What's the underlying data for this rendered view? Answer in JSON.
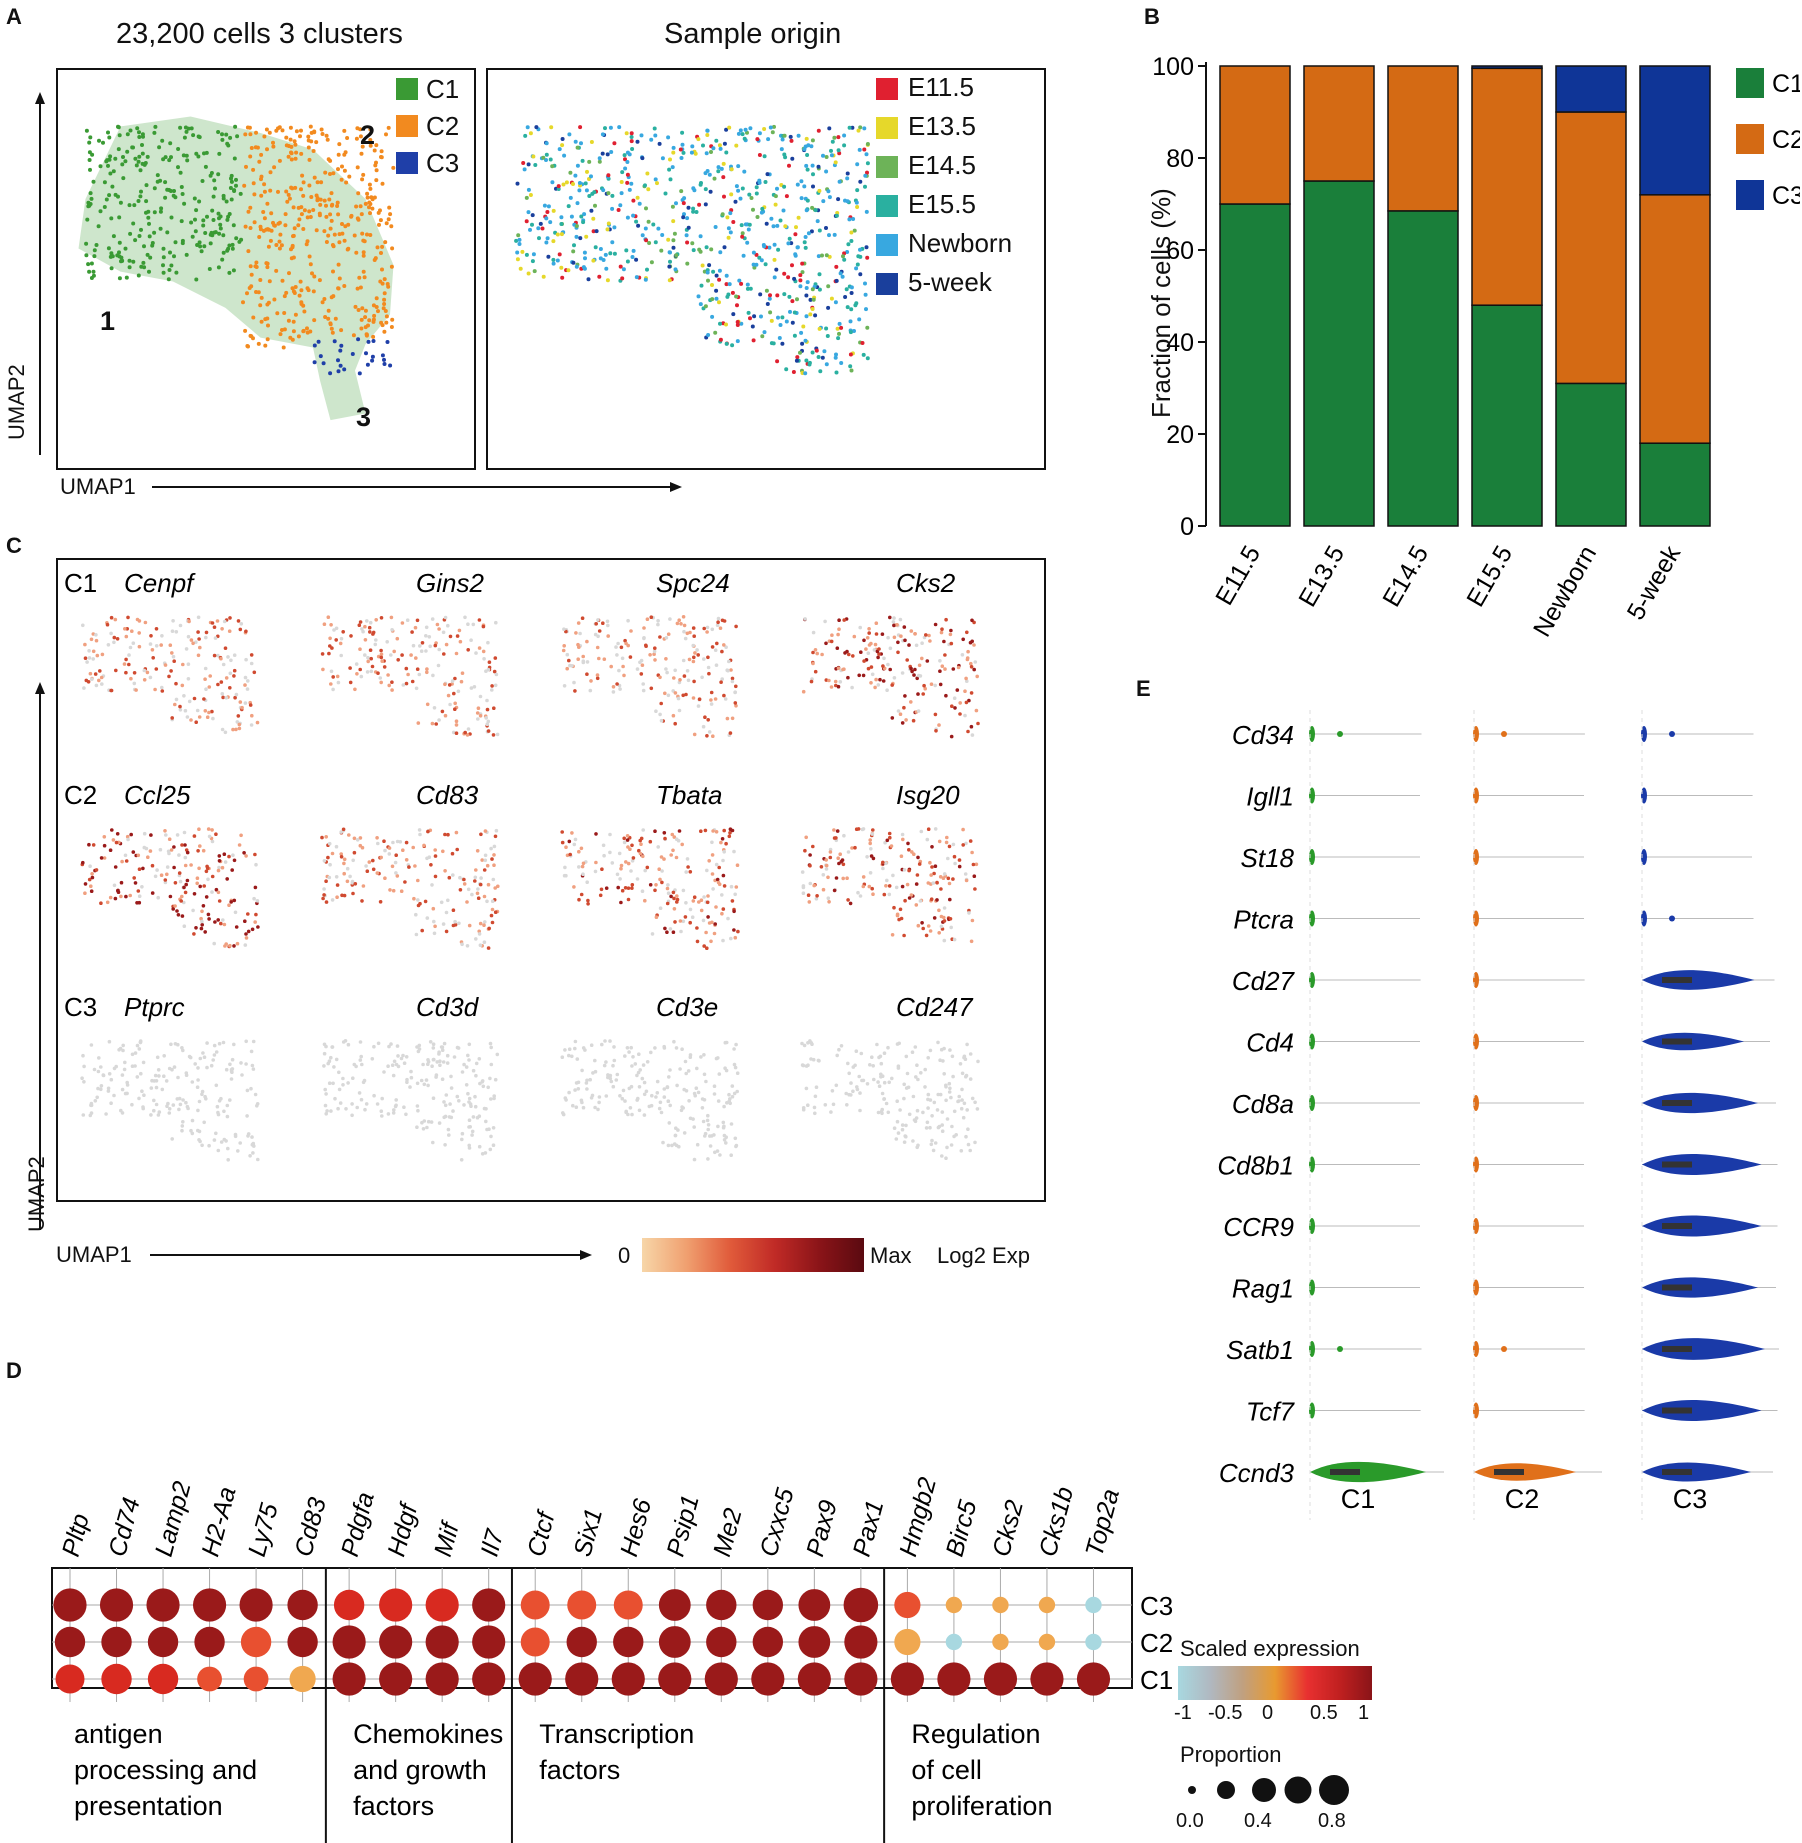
{
  "panel_labels": {
    "a": "A",
    "b": "B",
    "c": "C",
    "d": "D",
    "e": "E"
  },
  "panelA": {
    "left_title": "23,200 cells   3 clusters",
    "right_title": "Sample origin",
    "xaxis": "UMAP1",
    "yaxis": "UMAP2",
    "cluster_legend": [
      {
        "label": "C1",
        "color": "#3a9a34"
      },
      {
        "label": "C2",
        "color": "#f28a1f"
      },
      {
        "label": "C3",
        "color": "#1f3fa8"
      }
    ],
    "cluster_numbers": [
      "1",
      "2",
      "3"
    ],
    "sample_legend": [
      {
        "label": "E11.5",
        "color": "#e02030"
      },
      {
        "label": "E13.5",
        "color": "#e6d82a"
      },
      {
        "label": "E14.5",
        "color": "#6db358"
      },
      {
        "label": "E15.5",
        "color": "#2ab0a0"
      },
      {
        "label": "Newborn",
        "color": "#38a8e0"
      },
      {
        "label": "5-week",
        "color": "#1a3f9c"
      }
    ]
  },
  "panelC": {
    "rows": [
      {
        "cluster": "C1",
        "genes": [
          "Cenpf",
          "Gins2",
          "Spc24",
          "Cks2"
        ],
        "intensity": [
          0.55,
          0.6,
          0.55,
          0.85
        ]
      },
      {
        "cluster": "C2",
        "genes": [
          "Ccl25",
          "Cd83",
          "Tbata",
          "Isg20"
        ],
        "intensity": [
          0.85,
          0.6,
          0.7,
          0.7
        ]
      },
      {
        "cluster": "C3",
        "genes": [
          "Ptprc",
          "Cd3d",
          "Cd3e",
          "Cd247"
        ],
        "intensity": [
          0.05,
          0.08,
          0.08,
          0.08
        ]
      }
    ],
    "xaxis": "UMAP1",
    "yaxis": "UMAP2",
    "scale_min": "0",
    "scale_max": "Max",
    "scale_label": "Log2 Exp"
  },
  "chart_data": [
    {
      "type": "bar",
      "stacked": true,
      "title": "",
      "xlabel": "",
      "ylabel": "Fraction of cells (%)",
      "ylim": [
        0,
        100
      ],
      "yticks": [
        "0",
        "20",
        "40",
        "60",
        "80",
        "100"
      ],
      "categories": [
        "E11.5",
        "E13.5",
        "E14.5",
        "E15.5",
        "Newborn",
        "5-week"
      ],
      "series": [
        {
          "name": "C1",
          "color": "#1a7f3a",
          "values": [
            70,
            75,
            68.5,
            48,
            31,
            18
          ]
        },
        {
          "name": "C2",
          "color": "#d46a14",
          "values": [
            30,
            25,
            31.5,
            51.5,
            59,
            54
          ]
        },
        {
          "name": "C3",
          "color": "#0f3597",
          "values": [
            0,
            0,
            0,
            0.5,
            10,
            28
          ]
        }
      ],
      "legend": "right"
    },
    {
      "type": "dotplot",
      "genes": [
        "Pltp",
        "Cd74",
        "Lamp2",
        "H2-Aa",
        "Ly75",
        "Cd83",
        "Pdgfa",
        "Hdgf",
        "Mif",
        "Il7",
        "Ctcf",
        "Six1",
        "Hes6",
        "Psip1",
        "Me2",
        "Cxxc5",
        "Pax9",
        "Pax1",
        "Hmgb2",
        "Birc5",
        "Cks2",
        "Cks1b",
        "Top2a"
      ],
      "clusters": [
        "C3",
        "C2",
        "C1"
      ],
      "expression": [
        [
          0.85,
          0.85,
          0.85,
          0.85,
          0.85,
          0.85,
          0.5,
          0.6,
          0.5,
          0.85,
          0.3,
          0.35,
          0.3,
          0.8,
          0.8,
          0.85,
          0.85,
          0.85,
          0.3,
          -0.3,
          -0.3,
          -0.3,
          -1
        ],
        [
          0.85,
          0.85,
          0.85,
          0.85,
          0.3,
          0.85,
          0.85,
          0.85,
          0.85,
          0.85,
          0.3,
          0.85,
          0.85,
          0.85,
          0.85,
          0.85,
          0.85,
          0.85,
          -0.1,
          -1,
          -0.3,
          -0.3,
          -1
        ],
        [
          0.45,
          0.5,
          0.5,
          0.3,
          0.3,
          -0.1,
          0.85,
          0.85,
          0.85,
          0.85,
          0.85,
          0.85,
          0.85,
          0.85,
          0.85,
          0.85,
          0.85,
          0.85,
          0.85,
          0.85,
          0.85,
          0.85,
          0.85
        ]
      ],
      "proportion": [
        [
          0.9,
          0.9,
          0.9,
          0.9,
          0.9,
          0.8,
          0.8,
          0.9,
          0.9,
          0.9,
          0.75,
          0.75,
          0.75,
          0.85,
          0.8,
          0.8,
          0.85,
          0.95,
          0.65,
          0.3,
          0.3,
          0.3,
          0.3
        ],
        [
          0.8,
          0.8,
          0.8,
          0.8,
          0.8,
          0.8,
          0.9,
          0.9,
          0.9,
          0.9,
          0.75,
          0.8,
          0.8,
          0.85,
          0.8,
          0.8,
          0.85,
          0.9,
          0.65,
          0.3,
          0.3,
          0.3,
          0.3
        ],
        [
          0.75,
          0.8,
          0.8,
          0.6,
          0.6,
          0.65,
          0.9,
          0.9,
          0.9,
          0.9,
          0.9,
          0.9,
          0.9,
          0.9,
          0.9,
          0.9,
          0.9,
          0.9,
          0.9,
          0.9,
          0.9,
          0.9,
          0.9
        ]
      ],
      "groups": [
        {
          "label_lines": [
            "antigen",
            "processing and",
            "presentation"
          ],
          "count": 6
        },
        {
          "label_lines": [
            "Chemokines",
            "and growth",
            "factors"
          ],
          "count": 4
        },
        {
          "label_lines": [
            "Transcription",
            "factors"
          ],
          "count": 8
        },
        {
          "label_lines": [
            "Regulation",
            "of cell",
            "proliferation"
          ],
          "count": 5
        }
      ],
      "color_legend_title": "Scaled expression",
      "color_ticks": [
        "-1",
        "-0.5",
        "0",
        "0.5",
        "1"
      ],
      "size_legend_title": "Proportion",
      "size_ticks": [
        "0.0",
        "0.4",
        "0.8"
      ]
    },
    {
      "type": "violin",
      "genes": [
        "Cd34",
        "Igll1",
        "St18",
        "Ptcra",
        "Cd27",
        "Cd4",
        "Cd8a",
        "Cd8b1",
        "CCR9",
        "Rag1",
        "Satb1",
        "Tcf7",
        "Ccnd3"
      ],
      "clusters": [
        "C1",
        "C2",
        "C3"
      ],
      "colors": [
        "#2a9a2a",
        "#e0701a",
        "#1a3aa8"
      ],
      "expression_level": [
        [
          0.05,
          0.0,
          0.0,
          0.0,
          0.02,
          0.0,
          0.0,
          0.0,
          0.0,
          0.0,
          0.05,
          0.02,
          0.8
        ],
        [
          0.03,
          0.0,
          0.0,
          0.0,
          0.02,
          0.0,
          0.0,
          0.0,
          0.0,
          0.0,
          0.03,
          0.02,
          0.6
        ],
        [
          0.05,
          0.02,
          0.0,
          0.05,
          0.75,
          0.6,
          0.8,
          0.85,
          0.85,
          0.8,
          0.9,
          0.85,
          0.7
        ]
      ]
    }
  ]
}
